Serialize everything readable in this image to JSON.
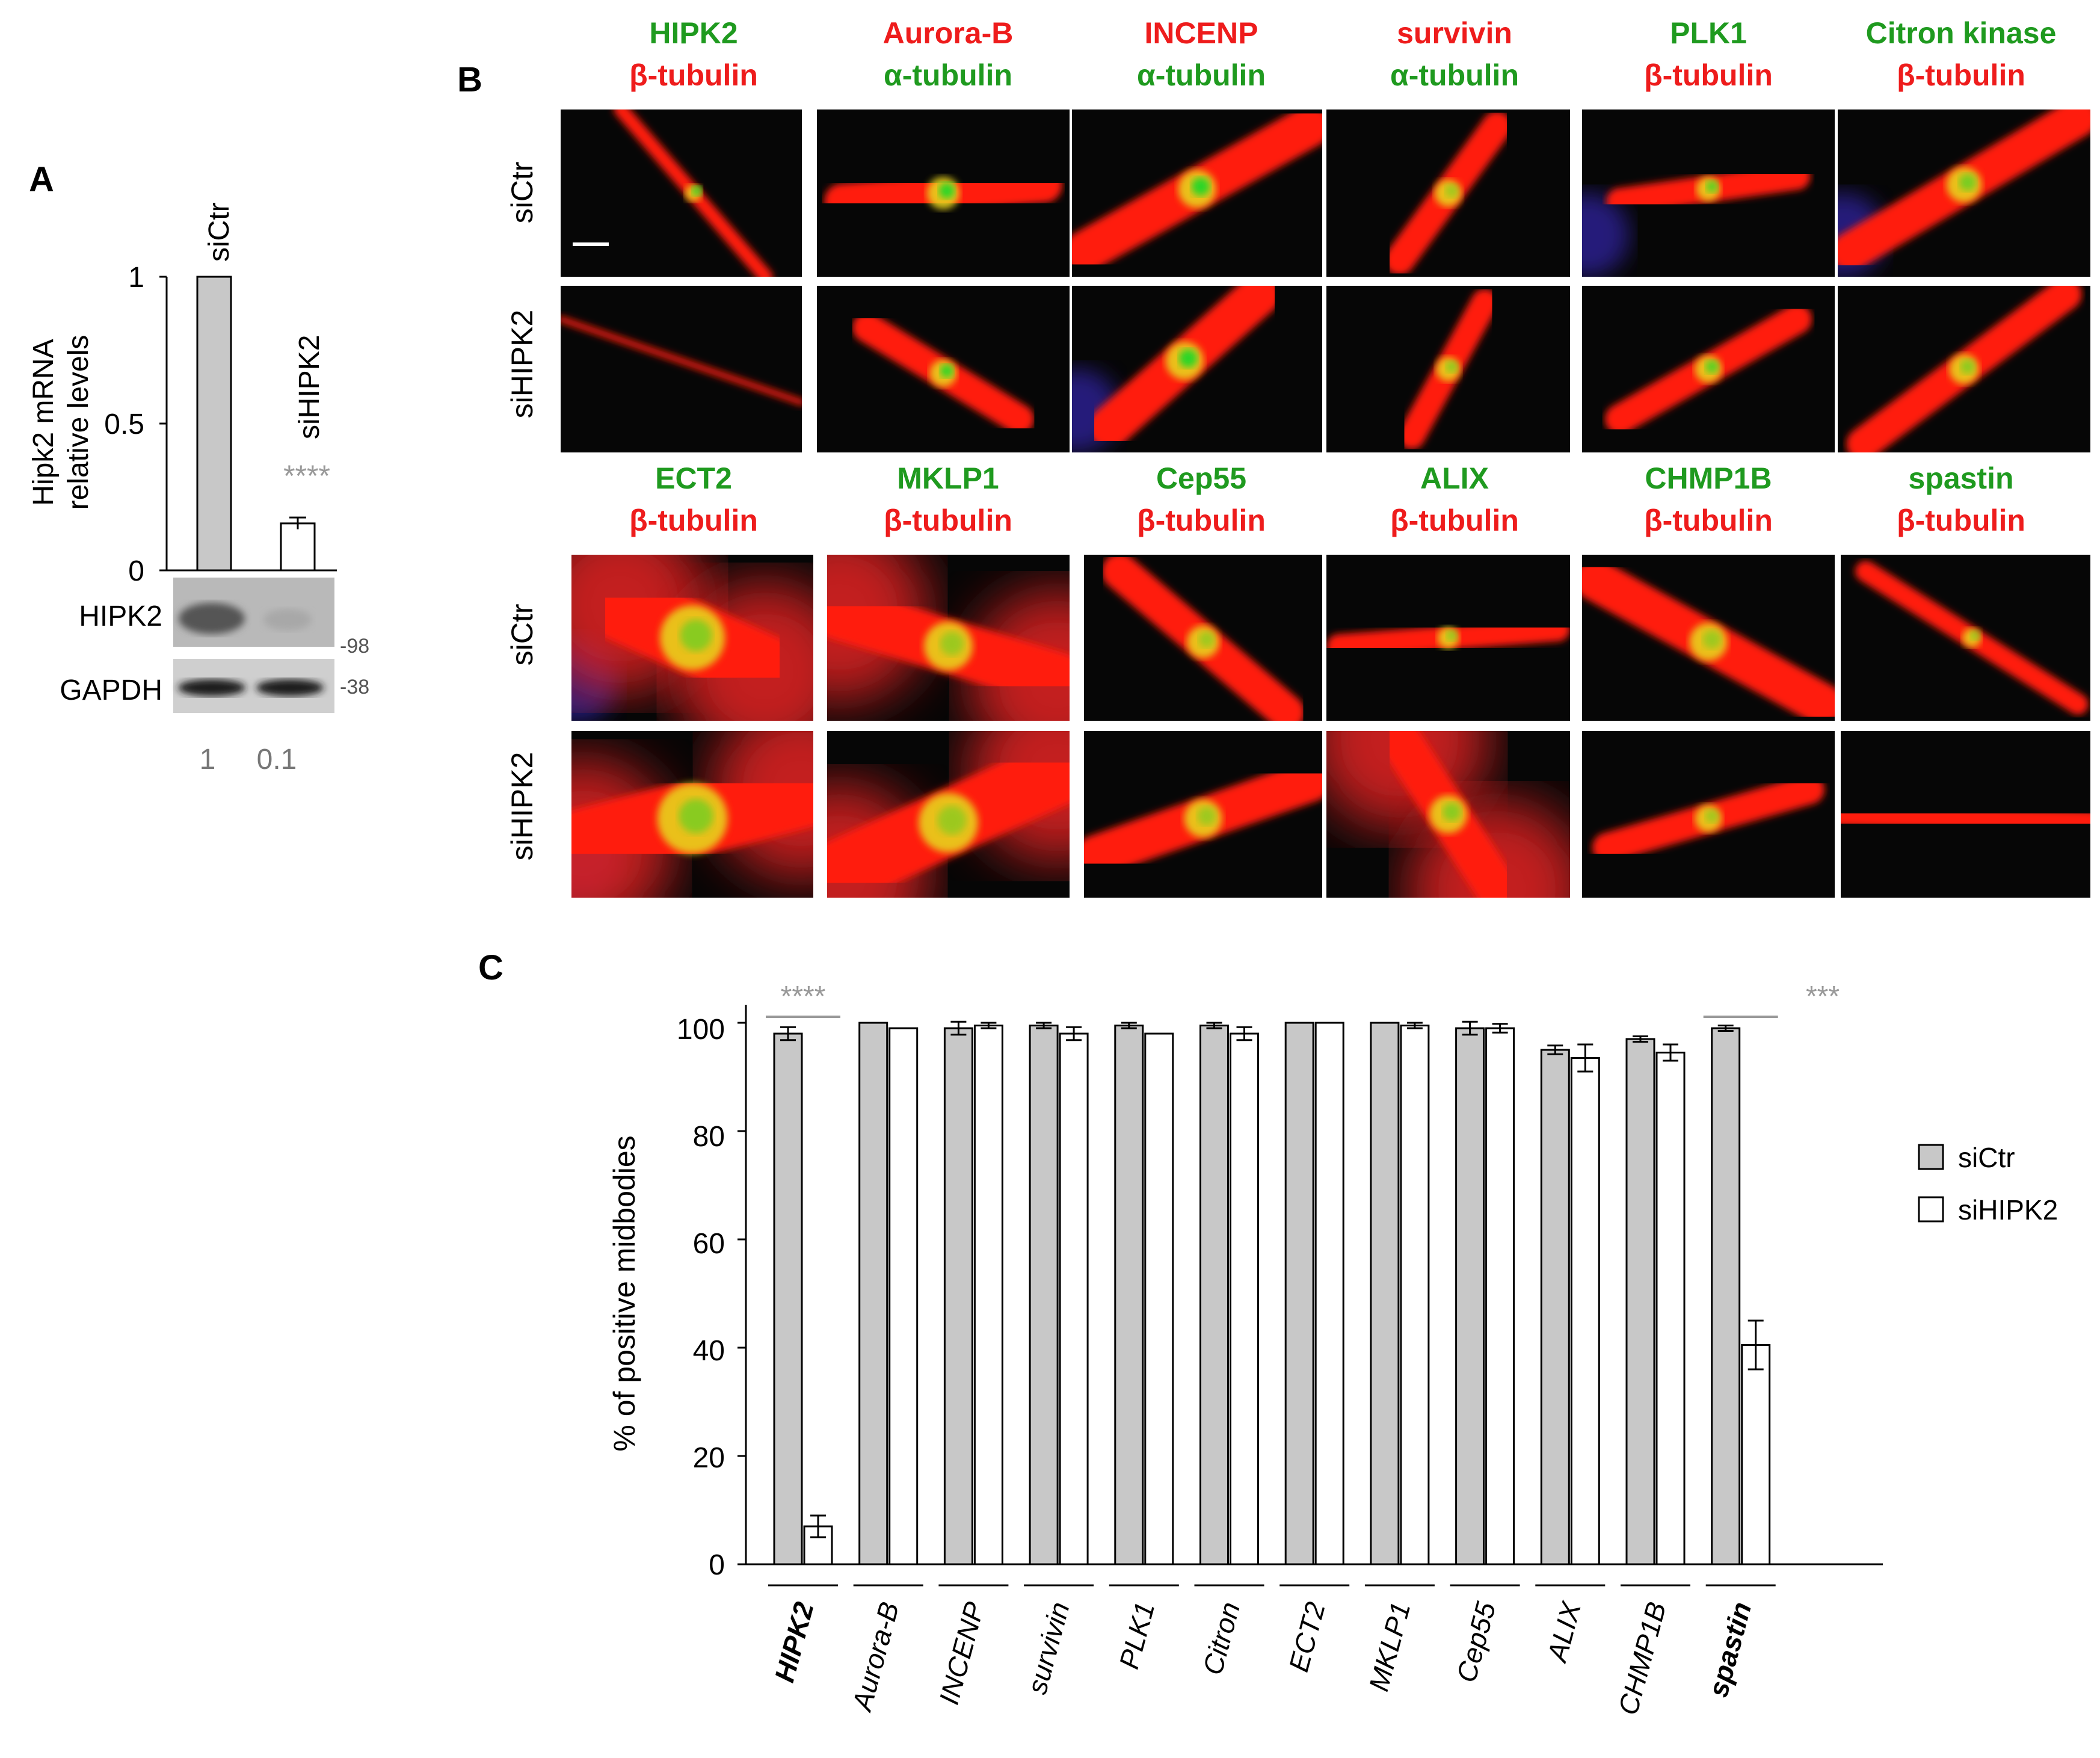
{
  "colors": {
    "green": "#1f9a1f",
    "red": "#ee1c1c",
    "gray_bar": "#c8c8c8",
    "sig_gray": "#999999"
  },
  "panel_a": {
    "label": "A",
    "ylabel_line1": "Hipk2 mRNA",
    "ylabel_line2": "relative levels",
    "ticks": [
      "0",
      "0.5",
      "1"
    ],
    "bar_labels": [
      "siCtr",
      "siHIPK2"
    ],
    "chart_data": {
      "type": "bar",
      "categories": [
        "siCtr",
        "siHIPK2"
      ],
      "values": [
        1.0,
        0.16
      ],
      "errors": [
        0.0,
        0.02
      ],
      "ylabel": "Hipk2 mRNA relative levels",
      "ylim": [
        0,
        1
      ],
      "significance": "****"
    },
    "blot_labels": [
      "HIPK2",
      "GAPDH"
    ],
    "markers": [
      "-98",
      "-38"
    ],
    "quant": [
      "1",
      "0.1"
    ]
  },
  "panel_b": {
    "label": "B",
    "row_labels": [
      "siCtr",
      "siHIPK2",
      "siCtr",
      "siHIPK2"
    ],
    "top_columns": [
      {
        "line1": "HIPK2",
        "line2": "β-tubulin",
        "c1": "green",
        "c2": "red"
      },
      {
        "line1": "Aurora-B",
        "line2": "α-tubulin",
        "c1": "red",
        "c2": "green"
      },
      {
        "line1": "INCENP",
        "line2": "α-tubulin",
        "c1": "red",
        "c2": "green"
      },
      {
        "line1": "survivin",
        "line2": "α-tubulin",
        "c1": "red",
        "c2": "green"
      },
      {
        "line1": "PLK1",
        "line2": "β-tubulin",
        "c1": "green",
        "c2": "red"
      },
      {
        "line1": "Citron kinase",
        "line2": "β-tubulin",
        "c1": "green",
        "c2": "red"
      }
    ],
    "bottom_columns": [
      {
        "line1": "ECT2",
        "line2": "β-tubulin",
        "c1": "green",
        "c2": "red"
      },
      {
        "line1": "MKLP1",
        "line2": "β-tubulin",
        "c1": "green",
        "c2": "red"
      },
      {
        "line1": "Cep55",
        "line2": "β-tubulin",
        "c1": "green",
        "c2": "red"
      },
      {
        "line1": "ALIX",
        "line2": "β-tubulin",
        "c1": "green",
        "c2": "red"
      },
      {
        "line1": "CHMP1B",
        "line2": "β-tubulin",
        "c1": "green",
        "c2": "red"
      },
      {
        "line1": "spastin",
        "line2": "β-tubulin",
        "c1": "green",
        "c2": "red"
      }
    ]
  },
  "panel_c": {
    "label": "C",
    "ylabel": "% of positive midbodies",
    "ticks": [
      "0",
      "20",
      "40",
      "60",
      "80",
      "100"
    ],
    "legend": [
      "siCtr",
      "siHIPK2"
    ],
    "significance": [
      "****",
      "***"
    ],
    "chart_data": {
      "type": "bar",
      "categories": [
        "HIPK2",
        "Aurora-B",
        "INCENP",
        "survivin",
        "PLK1",
        "Citron",
        "ECT2",
        "MKLP1",
        "Cep55",
        "ALIX",
        "CHMP1B",
        "spastin"
      ],
      "bold_categories": [
        "HIPK2",
        "spastin"
      ],
      "series": [
        {
          "name": "siCtr",
          "values": [
            98,
            100,
            99,
            99.5,
            99.5,
            99.5,
            100,
            100,
            99,
            95,
            97,
            99
          ],
          "errors": [
            1.2,
            0,
            1.2,
            0.5,
            0.5,
            0.5,
            0,
            0,
            1.2,
            0.8,
            0.5,
            0.5
          ]
        },
        {
          "name": "siHIPK2",
          "values": [
            7,
            99,
            99.5,
            98,
            98,
            98,
            100,
            99.5,
            99,
            93.5,
            94.5,
            40.5
          ],
          "errors": [
            2,
            0,
            0.5,
            1.2,
            0,
            1.2,
            0,
            0.5,
            0.8,
            2.5,
            1.5,
            4.5
          ]
        }
      ],
      "ylabel": "% of positive midbodies",
      "ylim": [
        0,
        100
      ],
      "significance": [
        {
          "category": "HIPK2",
          "label": "****"
        },
        {
          "category": "spastin",
          "label": "***"
        }
      ]
    }
  }
}
